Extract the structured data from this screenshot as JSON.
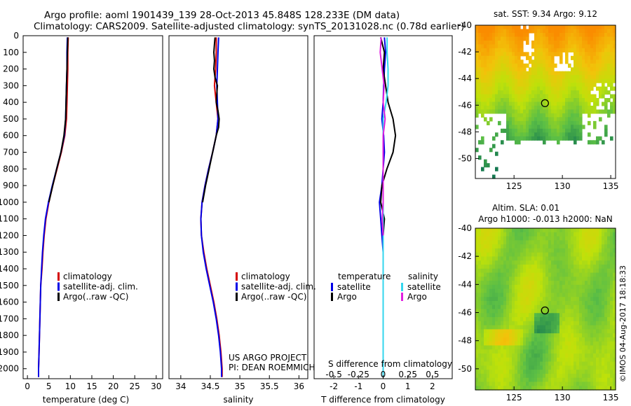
{
  "title": {
    "line1": "Argo profile: aoml 1901439_139 28-Oct-2013 45.848S 128.233E (DM data)",
    "line2": "Climatology: CARS2009. Satellite-adjusted climatology: synTS_20131028.nc (0.78d earlier)"
  },
  "colors": {
    "climatology": "#d40000",
    "satellite": "#0000e6",
    "argo": "#000000",
    "sal_satellite": "#33d6ee",
    "sal_argo": "#e020e0"
  },
  "chart_data": [
    {
      "type": "line",
      "title": "",
      "xlabel": "temperature (deg C)",
      "ylabel": "",
      "xlim": [
        -1,
        31.5
      ],
      "ylim": [
        2060,
        0
      ],
      "xticks": [
        0,
        5,
        10,
        15,
        20,
        25,
        30
      ],
      "xtick_labels": [
        "0",
        "5",
        "10",
        "15",
        "20",
        "25",
        "30"
      ],
      "yticks": [
        0,
        100,
        200,
        300,
        400,
        500,
        600,
        700,
        800,
        900,
        1000,
        1100,
        1200,
        1300,
        1400,
        1500,
        1600,
        1700,
        1800,
        1900,
        2000
      ],
      "ytick_labels": [
        "0",
        "100",
        "200",
        "300",
        "400",
        "500",
        "600",
        "700",
        "800",
        "900",
        "1000",
        "1100",
        "1200",
        "1300",
        "1400",
        "1500",
        "1600",
        "1700",
        "1800",
        "1900",
        "2000"
      ],
      "legend": [
        "climatology",
        "satellite-adj. clim.",
        "Argo(..raw -QC)"
      ],
      "series": [
        {
          "name": "climatology",
          "color": "#d40000",
          "depth": [
            10,
            100,
            200,
            300,
            400,
            500,
            600,
            700,
            800,
            900,
            1000,
            1100,
            1200,
            1300,
            1400,
            1500,
            1600,
            1700,
            1800,
            1900,
            2000,
            2050
          ],
          "values": [
            9.5,
            9.4,
            9.4,
            9.3,
            9.2,
            9.1,
            8.7,
            7.9,
            6.9,
            5.9,
            5.0,
            4.3,
            3.9,
            3.6,
            3.4,
            3.1,
            3.0,
            2.9,
            2.8,
            2.7,
            2.6,
            2.6
          ]
        },
        {
          "name": "satellite-adj. clim.",
          "color": "#0000e6",
          "depth": [
            10,
            100,
            200,
            300,
            400,
            500,
            600,
            700,
            800,
            900,
            1000,
            1100,
            1200,
            1300,
            1400,
            1500,
            1600,
            1700,
            1800,
            1900,
            2000,
            2050
          ],
          "values": [
            9.3,
            9.2,
            9.2,
            9.1,
            9.0,
            8.9,
            8.6,
            7.8,
            6.8,
            5.8,
            4.9,
            4.2,
            3.8,
            3.5,
            3.3,
            3.1,
            3.0,
            2.9,
            2.8,
            2.7,
            2.6,
            2.6
          ]
        },
        {
          "name": "Argo(..raw -QC)",
          "color": "#000000",
          "depth": [
            10,
            100,
            200,
            300,
            400,
            500,
            600,
            700,
            800,
            900,
            1000
          ],
          "values": [
            9.4,
            9.3,
            9.2,
            9.1,
            9.0,
            8.9,
            8.5,
            7.8,
            6.8,
            5.9,
            5.0
          ]
        }
      ]
    },
    {
      "type": "line",
      "title": "",
      "xlabel": "salinity",
      "ylabel": "",
      "xlim": [
        33.8,
        36.15
      ],
      "ylim": [
        2060,
        0
      ],
      "xticks": [
        34,
        34.5,
        35,
        35.5,
        36
      ],
      "xtick_labels": [
        "34",
        "34.5",
        "35",
        "35.5",
        "36"
      ],
      "legend": [
        "climatology",
        "satellite-adj. clim.",
        "Argo(..raw -QC)"
      ],
      "annotation": [
        "US ARGO PROJECT",
        "PI: DEAN ROEMMICH"
      ],
      "series": [
        {
          "name": "climatology",
          "color": "#d40000",
          "depth": [
            10,
            100,
            200,
            300,
            400,
            500,
            600,
            700,
            800,
            900,
            1000,
            1100,
            1200,
            1300,
            1400,
            1500,
            1600,
            1700,
            1800,
            1900,
            2000,
            2050
          ],
          "values": [
            34.6,
            34.6,
            34.59,
            34.57,
            34.6,
            34.63,
            34.6,
            34.54,
            34.47,
            34.41,
            34.36,
            34.34,
            34.35,
            34.39,
            34.44,
            34.5,
            34.56,
            34.61,
            34.65,
            34.68,
            34.7,
            34.7
          ]
        },
        {
          "name": "satellite-adj. clim.",
          "color": "#0000e6",
          "depth": [
            10,
            100,
            200,
            300,
            400,
            500,
            600,
            700,
            800,
            900,
            1000,
            1100,
            1200,
            1300,
            1400,
            1500,
            1600,
            1700,
            1800,
            1900,
            2000,
            2050
          ],
          "values": [
            34.64,
            34.63,
            34.62,
            34.61,
            34.62,
            34.63,
            34.6,
            34.54,
            34.47,
            34.41,
            34.36,
            34.34,
            34.35,
            34.38,
            34.43,
            34.49,
            34.55,
            34.6,
            34.64,
            34.67,
            34.69,
            34.69
          ]
        },
        {
          "name": "Argo(..raw -QC)",
          "color": "#000000",
          "depth": [
            10,
            50,
            100,
            150,
            200,
            250,
            300,
            350,
            400,
            450,
            500,
            550,
            600,
            650,
            700,
            750,
            800,
            900,
            1000
          ],
          "values": [
            34.58,
            34.57,
            34.56,
            34.57,
            34.56,
            34.58,
            34.62,
            34.61,
            34.6,
            34.63,
            34.65,
            34.64,
            34.6,
            34.57,
            34.54,
            34.51,
            34.48,
            34.42,
            34.37
          ]
        }
      ]
    },
    {
      "type": "line",
      "title": "",
      "xlabel": "T difference from climatology",
      "ylabel": "",
      "xlim": [
        -2.8,
        2.8
      ],
      "ylim": [
        2060,
        0
      ],
      "xticks": [
        -2,
        -1,
        0,
        1,
        2
      ],
      "xtick_labels": [
        "-2",
        "-1",
        "0",
        "1",
        "2"
      ],
      "sec_xticks": [
        -0.5,
        -0.25,
        0,
        0.25,
        0.5
      ],
      "sec_xtick_labels": [
        "-0.5",
        "-0.25",
        "0",
        "0.25",
        "0.5"
      ],
      "sec_xlabel": "S difference from climatology",
      "legend_headers": [
        "temperature",
        "salinity"
      ],
      "legend": [
        "satellite",
        "Argo",
        "satellite",
        "Argo"
      ],
      "series": [
        {
          "name": "temperature satellite",
          "color": "#0000e6",
          "depth": [
            10,
            100,
            200,
            300,
            400,
            500,
            600,
            700,
            800,
            900,
            1000,
            1100,
            1200,
            1300,
            1500,
            1700,
            1900,
            2050
          ],
          "values": [
            0.05,
            0.1,
            0.05,
            0.02,
            0.0,
            -0.05,
            0.02,
            0.05,
            0.0,
            -0.05,
            -0.15,
            -0.1,
            -0.05,
            0.0,
            0.0,
            0.0,
            0.0,
            0.0
          ]
        },
        {
          "name": "temperature Argo",
          "color": "#000000",
          "depth": [
            10,
            100,
            200,
            300,
            400,
            500,
            600,
            700,
            800,
            900,
            1000,
            1100,
            1200,
            1300
          ],
          "values": [
            -0.1,
            0.05,
            0.0,
            0.1,
            0.2,
            0.4,
            0.5,
            0.4,
            0.15,
            -0.05,
            -0.1,
            0.05,
            0.0,
            0.0
          ]
        },
        {
          "name": "salinity satellite",
          "color": "#33d6ee",
          "depth": [
            10,
            100,
            200,
            300,
            400,
            500,
            600,
            700,
            800,
            900,
            1000,
            1100,
            1200,
            1300,
            1500,
            1700,
            1900,
            2050
          ],
          "values": [
            0.04,
            0.04,
            0.05,
            0.05,
            0.03,
            0.0,
            0.0,
            0.0,
            0.0,
            0.0,
            0.0,
            0.0,
            0.0,
            0.0,
            0.0,
            0.0,
            0.0,
            0.0
          ]
        },
        {
          "name": "salinity Argo",
          "color": "#e020e0",
          "depth": [
            10,
            100,
            200,
            300,
            400,
            500,
            600,
            700,
            800,
            900,
            1000,
            1100,
            1200
          ],
          "values": [
            -0.02,
            -0.03,
            -0.01,
            0.01,
            0.0,
            0.02,
            0.0,
            0.0,
            0.0,
            0.0,
            0.0,
            -0.01,
            0.0
          ]
        }
      ]
    }
  ],
  "maps": {
    "sst": {
      "title": "sat. SST: 9.34 Argo: 9.12",
      "xticks": [
        125,
        130,
        135
      ],
      "yticks": [
        -40,
        -42,
        -44,
        -46,
        -48,
        -50
      ],
      "xlim": [
        121,
        135.5
      ],
      "ylim": [
        -40,
        -51.5
      ],
      "argo_lon": 128.2,
      "argo_lat": -45.85
    },
    "sla": {
      "title1": "Altim. SLA: 0.01",
      "title2": "Argo h1000: -0.013 h2000: NaN",
      "xticks": [
        125,
        130,
        135
      ],
      "yticks": [
        -40,
        -42,
        -44,
        -46,
        -48,
        -50
      ],
      "xlim": [
        121,
        135.5
      ],
      "ylim": [
        -40,
        -51.5
      ],
      "argo_lon": 128.2,
      "argo_lat": -45.85
    }
  },
  "credit": "©IMOS 04-Aug-2017 18:18:33"
}
